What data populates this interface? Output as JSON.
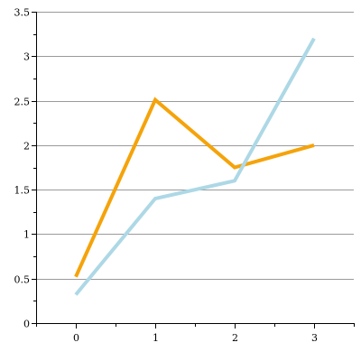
{
  "chart_data": {
    "type": "line",
    "title": "",
    "xlabel": "",
    "ylabel": "",
    "x": [
      0,
      1,
      2,
      3
    ],
    "xlim": [
      -0.5,
      3.5
    ],
    "ylim": [
      0,
      3.5
    ],
    "x_ticks": [
      "0",
      "1",
      "2",
      "3"
    ],
    "y_ticks": [
      "0",
      "0.5",
      "1",
      "1.5",
      "2",
      "2.5",
      "3",
      "3.5"
    ],
    "y_tick_values": [
      0,
      0.5,
      1,
      1.5,
      2,
      2.5,
      3,
      3.5
    ],
    "grid": "horizontal",
    "legend": "none",
    "series": [
      {
        "values": [
          0.52,
          2.51,
          1.75,
          2.0
        ],
        "color": "#f5a30a"
      },
      {
        "values": [
          0.32,
          1.4,
          1.6,
          3.2
        ],
        "color": "#add8e6"
      }
    ]
  }
}
